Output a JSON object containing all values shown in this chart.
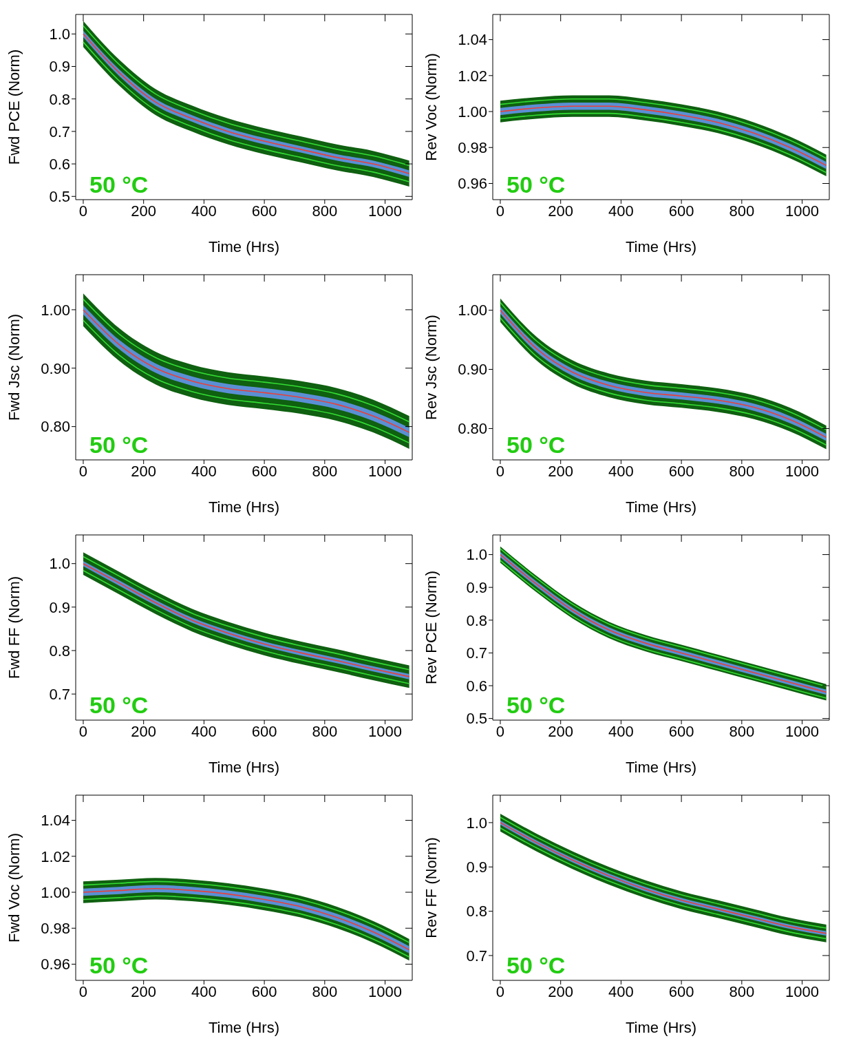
{
  "chart_data": [
    {
      "type": "line",
      "ylabel": "Fwd PCE (Norm)",
      "xlabel": "Time (Hrs)",
      "annotations": [
        "50 °C"
      ],
      "marker": "none",
      "xlim": [
        -25,
        1090
      ],
      "xticks": [
        0,
        200,
        400,
        600,
        800,
        1000
      ],
      "ylim": [
        0.49,
        1.06
      ],
      "yticks": [
        0.5,
        0.6,
        0.7,
        0.8,
        0.9,
        {
          "value": 1,
          "label": "1.0"
        }
      ],
      "x": [
        0,
        120,
        240,
        360,
        480,
        600,
        720,
        840,
        960,
        1080
      ],
      "series": [
        {
          "color": "#0f6010",
          "values": [
            null,
            null,
            null,
            null,
            null,
            null,
            null,
            null,
            null,
            null
          ],
          "lower": [
            0.96,
            0.84,
            0.75,
            0.7,
            0.66,
            0.63,
            0.605,
            0.58,
            0.56,
            0.53
          ],
          "upper": [
            1.04,
            0.92,
            0.83,
            0.78,
            0.74,
            0.71,
            0.685,
            0.66,
            0.64,
            0.61
          ]
        },
        {
          "color": "#5b8fd4",
          "values": [
            null,
            null,
            null,
            null,
            null,
            null,
            null,
            null,
            null,
            null
          ],
          "lower": [
            0.99,
            0.87,
            0.78,
            0.73,
            0.69,
            0.66,
            0.635,
            0.61,
            0.59,
            0.56
          ],
          "upper": [
            1.01,
            0.89,
            0.8,
            0.75,
            0.71,
            0.68,
            0.655,
            0.63,
            0.61,
            0.58
          ]
        },
        {
          "color": "#33dd33",
          "values": [
            1.025,
            0.905,
            0.815,
            0.765,
            0.725,
            0.695,
            0.67,
            0.645,
            0.625,
            0.595
          ]
        },
        {
          "color": "#33dd33",
          "values": [
            0.975,
            0.855,
            0.765,
            0.715,
            0.675,
            0.645,
            0.62,
            0.595,
            0.575,
            0.545
          ]
        },
        {
          "color": "#e8403a",
          "values": [
            1.0,
            0.88,
            0.79,
            0.74,
            0.7,
            0.67,
            0.645,
            0.62,
            0.6,
            0.57
          ]
        }
      ]
    },
    {
      "type": "line",
      "ylabel": "Rev Voc (Norm)",
      "xlabel": "Time (Hrs)",
      "annotations": [
        "50 °C"
      ],
      "marker": "none",
      "xlim": [
        -25,
        1090
      ],
      "xticks": [
        0,
        200,
        400,
        600,
        800,
        1000
      ],
      "ylim": [
        0.951,
        1.054
      ],
      "yticks": [
        0.96,
        0.98,
        {
          "value": 1,
          "label": "1.00"
        },
        1.02,
        1.04
      ],
      "x": [
        0,
        120,
        240,
        360,
        480,
        600,
        720,
        840,
        960,
        1080
      ],
      "series": [
        {
          "color": "#0f6010",
          "values": [
            null,
            null,
            null,
            null,
            null,
            null,
            null,
            null,
            null,
            null
          ],
          "lower": [
            0.994,
            0.996,
            0.997,
            0.997,
            0.995,
            0.992,
            0.988,
            0.982,
            0.974,
            0.964
          ],
          "upper": [
            1.006,
            1.008,
            1.009,
            1.009,
            1.007,
            1.004,
            1.0,
            0.994,
            0.986,
            0.976
          ]
        },
        {
          "color": "#5b8fd4",
          "values": [
            null,
            null,
            null,
            null,
            null,
            null,
            null,
            null,
            null,
            null
          ],
          "lower": [
            0.998,
            1.0,
            1.001,
            1.001,
            0.999,
            0.996,
            0.992,
            0.986,
            0.978,
            0.968
          ],
          "upper": [
            1.002,
            1.004,
            1.005,
            1.005,
            1.003,
            1.0,
            0.996,
            0.99,
            0.982,
            0.972
          ]
        },
        {
          "color": "#33dd33",
          "values": [
            1.004,
            1.006,
            1.007,
            1.007,
            1.005,
            1.002,
            0.998,
            0.992,
            0.984,
            0.974
          ]
        },
        {
          "color": "#33dd33",
          "values": [
            0.996,
            0.998,
            0.999,
            0.999,
            0.997,
            0.994,
            0.99,
            0.984,
            0.976,
            0.966
          ]
        },
        {
          "color": "#e8403a",
          "values": [
            1.0,
            1.002,
            1.003,
            1.003,
            1.001,
            0.998,
            0.994,
            0.988,
            0.98,
            0.97
          ]
        }
      ]
    },
    {
      "type": "line",
      "ylabel": "Fwd Jsc (Norm)",
      "xlabel": "Time (Hrs)",
      "annotations": [
        "50 °C"
      ],
      "marker": "none",
      "xlim": [
        -25,
        1090
      ],
      "xticks": [
        0,
        200,
        400,
        600,
        800,
        1000
      ],
      "ylim": [
        0.743,
        1.06
      ],
      "yticks": [
        {
          "value": 0.8,
          "label": "0.80"
        },
        {
          "value": 0.9,
          "label": "0.90"
        },
        {
          "value": 1,
          "label": "1.00"
        }
      ],
      "x": [
        0,
        120,
        240,
        360,
        480,
        600,
        720,
        840,
        960,
        1080
      ],
      "series": [
        {
          "color": "#0f6010",
          "values": [
            null,
            null,
            null,
            null,
            null,
            null,
            null,
            null,
            null,
            null
          ],
          "lower": [
            0.972,
            0.912,
            0.872,
            0.85,
            0.837,
            0.83,
            0.822,
            0.81,
            0.79,
            0.762
          ],
          "upper": [
            1.028,
            0.968,
            0.928,
            0.906,
            0.893,
            0.886,
            0.878,
            0.866,
            0.846,
            0.818
          ]
        },
        {
          "color": "#5b8fd4",
          "values": [
            null,
            null,
            null,
            null,
            null,
            null,
            null,
            null,
            null,
            null
          ],
          "lower": [
            0.992,
            0.932,
            0.892,
            0.87,
            0.857,
            0.85,
            0.842,
            0.83,
            0.81,
            0.782
          ],
          "upper": [
            1.008,
            0.948,
            0.908,
            0.886,
            0.873,
            0.866,
            0.858,
            0.846,
            0.826,
            0.798
          ]
        },
        {
          "color": "#33dd33",
          "values": [
            1.018,
            0.958,
            0.918,
            0.896,
            0.883,
            0.876,
            0.868,
            0.856,
            0.836,
            0.808
          ]
        },
        {
          "color": "#33dd33",
          "values": [
            0.982,
            0.922,
            0.882,
            0.86,
            0.847,
            0.84,
            0.832,
            0.82,
            0.8,
            0.772
          ]
        },
        {
          "color": "#e8403a",
          "values": [
            1.0,
            0.94,
            0.9,
            0.878,
            0.865,
            0.858,
            0.85,
            0.838,
            0.818,
            0.79
          ]
        }
      ]
    },
    {
      "type": "line",
      "ylabel": "Rev Jsc (Norm)",
      "xlabel": "Time (Hrs)",
      "annotations": [
        "50 °C"
      ],
      "marker": "none",
      "xlim": [
        -25,
        1090
      ],
      "xticks": [
        0,
        200,
        400,
        600,
        800,
        1000
      ],
      "ylim": [
        0.747,
        1.06
      ],
      "yticks": [
        {
          "value": 0.8,
          "label": "0.80"
        },
        {
          "value": 0.9,
          "label": "0.90"
        },
        {
          "value": 1,
          "label": "1.00"
        }
      ],
      "x": [
        0,
        120,
        240,
        360,
        480,
        600,
        720,
        840,
        960,
        1080
      ],
      "series": [
        {
          "color": "#0f6010",
          "values": [
            null,
            null,
            null,
            null,
            null,
            null,
            null,
            null,
            null,
            null
          ],
          "lower": [
            0.98,
            0.915,
            0.875,
            0.853,
            0.841,
            0.835,
            0.828,
            0.816,
            0.795,
            0.765
          ],
          "upper": [
            1.02,
            0.955,
            0.915,
            0.893,
            0.881,
            0.875,
            0.868,
            0.856,
            0.835,
            0.805
          ]
        },
        {
          "color": "#5b8fd4",
          "values": [
            null,
            null,
            null,
            null,
            null,
            null,
            null,
            null,
            null,
            null
          ],
          "lower": [
            0.994,
            0.929,
            0.889,
            0.867,
            0.855,
            0.849,
            0.842,
            0.83,
            0.809,
            0.779
          ],
          "upper": [
            1.006,
            0.941,
            0.901,
            0.879,
            0.867,
            0.861,
            0.854,
            0.842,
            0.821,
            0.791
          ]
        },
        {
          "color": "#33dd33",
          "values": [
            1.013,
            0.948,
            0.908,
            0.886,
            0.874,
            0.868,
            0.861,
            0.849,
            0.828,
            0.798
          ]
        },
        {
          "color": "#33dd33",
          "values": [
            0.987,
            0.922,
            0.882,
            0.86,
            0.848,
            0.842,
            0.835,
            0.823,
            0.802,
            0.772
          ]
        },
        {
          "color": "#e8403a",
          "values": [
            1.0,
            0.935,
            0.895,
            0.873,
            0.861,
            0.855,
            0.848,
            0.836,
            0.815,
            0.785
          ]
        }
      ]
    },
    {
      "type": "line",
      "ylabel": "Fwd FF (Norm)",
      "xlabel": "Time (Hrs)",
      "annotations": [
        "50 °C"
      ],
      "marker": "none",
      "xlim": [
        -25,
        1090
      ],
      "xticks": [
        0,
        200,
        400,
        600,
        800,
        1000
      ],
      "ylim": [
        0.64,
        1.066
      ],
      "yticks": [
        0.7,
        0.8,
        0.9,
        {
          "value": 1,
          "label": "1.0"
        }
      ],
      "x": [
        0,
        120,
        240,
        360,
        480,
        600,
        720,
        840,
        960,
        1080
      ],
      "series": [
        {
          "color": "#0f6010",
          "values": [
            null,
            null,
            null,
            null,
            null,
            null,
            null,
            null,
            null,
            null
          ],
          "lower": [
            0.974,
            0.929,
            0.884,
            0.844,
            0.814,
            0.789,
            0.769,
            0.751,
            0.732,
            0.714
          ],
          "upper": [
            1.026,
            0.981,
            0.936,
            0.896,
            0.866,
            0.841,
            0.821,
            0.803,
            0.784,
            0.766
          ]
        },
        {
          "color": "#5b8fd4",
          "values": [
            null,
            null,
            null,
            null,
            null,
            null,
            null,
            null,
            null,
            null
          ],
          "lower": [
            0.994,
            0.949,
            0.904,
            0.864,
            0.834,
            0.809,
            0.789,
            0.771,
            0.752,
            0.734
          ],
          "upper": [
            1.006,
            0.961,
            0.916,
            0.876,
            0.846,
            0.821,
            0.801,
            0.783,
            0.764,
            0.746
          ]
        },
        {
          "color": "#33dd33",
          "values": [
            1.016,
            0.971,
            0.926,
            0.886,
            0.856,
            0.831,
            0.811,
            0.793,
            0.774,
            0.756
          ]
        },
        {
          "color": "#33dd33",
          "values": [
            0.984,
            0.939,
            0.894,
            0.854,
            0.824,
            0.799,
            0.779,
            0.761,
            0.742,
            0.724
          ]
        },
        {
          "color": "#e8403a",
          "values": [
            1.0,
            0.955,
            0.91,
            0.87,
            0.84,
            0.815,
            0.795,
            0.777,
            0.758,
            0.74
          ]
        }
      ]
    },
    {
      "type": "line",
      "ylabel": "Rev PCE (Norm)",
      "xlabel": "Time (Hrs)",
      "annotations": [
        "50 °C"
      ],
      "marker": "none",
      "xlim": [
        -25,
        1090
      ],
      "xticks": [
        0,
        200,
        400,
        600,
        800,
        1000
      ],
      "ylim": [
        0.495,
        1.06
      ],
      "yticks": [
        0.5,
        0.6,
        0.7,
        0.8,
        0.9,
        {
          "value": 1,
          "label": "1.0"
        }
      ],
      "x": [
        0,
        120,
        240,
        360,
        480,
        600,
        720,
        840,
        960,
        1080
      ],
      "series": [
        {
          "color": "#0f6010",
          "values": [
            null,
            null,
            null,
            null,
            null,
            null,
            null,
            null,
            null,
            null
          ],
          "lower": [
            0.975,
            0.885,
            0.805,
            0.745,
            0.705,
            0.675,
            0.645,
            0.615,
            0.585,
            0.555
          ],
          "upper": [
            1.025,
            0.935,
            0.855,
            0.795,
            0.755,
            0.725,
            0.695,
            0.665,
            0.635,
            0.605
          ]
        },
        {
          "color": "#5b8fd4",
          "values": [
            null,
            null,
            null,
            null,
            null,
            null,
            null,
            null,
            null,
            null
          ],
          "lower": [
            0.992,
            0.902,
            0.822,
            0.762,
            0.722,
            0.692,
            0.662,
            0.632,
            0.602,
            0.572
          ],
          "upper": [
            1.008,
            0.918,
            0.838,
            0.778,
            0.738,
            0.708,
            0.678,
            0.648,
            0.618,
            0.588
          ]
        },
        {
          "color": "#33dd33",
          "values": [
            1.018,
            0.928,
            0.848,
            0.788,
            0.748,
            0.718,
            0.688,
            0.658,
            0.628,
            0.598
          ]
        },
        {
          "color": "#33dd33",
          "values": [
            0.982,
            0.892,
            0.812,
            0.752,
            0.712,
            0.682,
            0.652,
            0.622,
            0.592,
            0.562
          ]
        },
        {
          "color": "#e8403a",
          "values": [
            1.0,
            0.91,
            0.83,
            0.77,
            0.73,
            0.7,
            0.67,
            0.64,
            0.61,
            0.58
          ]
        }
      ]
    },
    {
      "type": "line",
      "ylabel": "Fwd Voc (Norm)",
      "xlabel": "Time (Hrs)",
      "annotations": [
        "50 °C"
      ],
      "marker": "none",
      "xlim": [
        -25,
        1090
      ],
      "xticks": [
        0,
        200,
        400,
        600,
        800,
        1000
      ],
      "ylim": [
        0.951,
        1.054
      ],
      "yticks": [
        0.96,
        0.98,
        {
          "value": 1,
          "label": "1.00"
        },
        1.02,
        1.04
      ],
      "x": [
        0,
        120,
        240,
        360,
        480,
        600,
        720,
        840,
        960,
        1080
      ],
      "series": [
        {
          "color": "#0f6010",
          "values": [
            null,
            null,
            null,
            null,
            null,
            null,
            null,
            null,
            null,
            null
          ],
          "lower": [
            0.994,
            0.995,
            0.996,
            0.995,
            0.993,
            0.99,
            0.986,
            0.98,
            0.972,
            0.962
          ],
          "upper": [
            1.006,
            1.007,
            1.008,
            1.007,
            1.005,
            1.002,
            0.998,
            0.992,
            0.984,
            0.974
          ]
        },
        {
          "color": "#5b8fd4",
          "values": [
            null,
            null,
            null,
            null,
            null,
            null,
            null,
            null,
            null,
            null
          ],
          "lower": [
            0.998,
            0.999,
            1.0,
            0.999,
            0.997,
            0.994,
            0.99,
            0.984,
            0.976,
            0.966
          ],
          "upper": [
            1.002,
            1.003,
            1.004,
            1.003,
            1.001,
            0.998,
            0.994,
            0.988,
            0.98,
            0.97
          ]
        },
        {
          "color": "#33dd33",
          "values": [
            1.004,
            1.005,
            1.006,
            1.005,
            1.003,
            1.0,
            0.996,
            0.99,
            0.982,
            0.972
          ]
        },
        {
          "color": "#33dd33",
          "values": [
            0.996,
            0.997,
            0.998,
            0.997,
            0.995,
            0.992,
            0.988,
            0.982,
            0.974,
            0.964
          ]
        },
        {
          "color": "#e8403a",
          "values": [
            1.0,
            1.001,
            1.002,
            1.001,
            0.999,
            0.996,
            0.992,
            0.986,
            0.978,
            0.968
          ]
        }
      ]
    },
    {
      "type": "line",
      "ylabel": "Rev FF (Norm)",
      "xlabel": "Time (Hrs)",
      "annotations": [
        "50 °C"
      ],
      "marker": "none",
      "xlim": [
        -25,
        1090
      ],
      "xticks": [
        0,
        200,
        400,
        600,
        800,
        1000
      ],
      "ylim": [
        0.644,
        1.062
      ],
      "yticks": [
        0.7,
        0.8,
        0.9,
        {
          "value": 1,
          "label": "1.0"
        }
      ],
      "x": [
        0,
        120,
        240,
        360,
        480,
        600,
        720,
        840,
        960,
        1080
      ],
      "series": [
        {
          "color": "#0f6010",
          "values": [
            null,
            null,
            null,
            null,
            null,
            null,
            null,
            null,
            null,
            null
          ],
          "lower": [
            0.98,
            0.935,
            0.895,
            0.86,
            0.83,
            0.805,
            0.785,
            0.765,
            0.745,
            0.73
          ],
          "upper": [
            1.02,
            0.975,
            0.935,
            0.9,
            0.87,
            0.845,
            0.825,
            0.805,
            0.785,
            0.77
          ]
        },
        {
          "color": "#5b8fd4",
          "values": [
            null,
            null,
            null,
            null,
            null,
            null,
            null,
            null,
            null,
            null
          ],
          "lower": [
            0.995,
            0.95,
            0.91,
            0.875,
            0.845,
            0.82,
            0.8,
            0.78,
            0.76,
            0.745
          ],
          "upper": [
            1.005,
            0.96,
            0.92,
            0.885,
            0.855,
            0.83,
            0.81,
            0.79,
            0.77,
            0.755
          ]
        },
        {
          "color": "#33dd33",
          "values": [
            1.012,
            0.967,
            0.927,
            0.892,
            0.862,
            0.837,
            0.817,
            0.797,
            0.777,
            0.762
          ]
        },
        {
          "color": "#33dd33",
          "values": [
            0.988,
            0.943,
            0.903,
            0.868,
            0.838,
            0.813,
            0.793,
            0.773,
            0.753,
            0.738
          ]
        },
        {
          "color": "#e8403a",
          "values": [
            1.0,
            0.955,
            0.915,
            0.88,
            0.85,
            0.825,
            0.805,
            0.785,
            0.765,
            0.75
          ]
        }
      ]
    }
  ]
}
